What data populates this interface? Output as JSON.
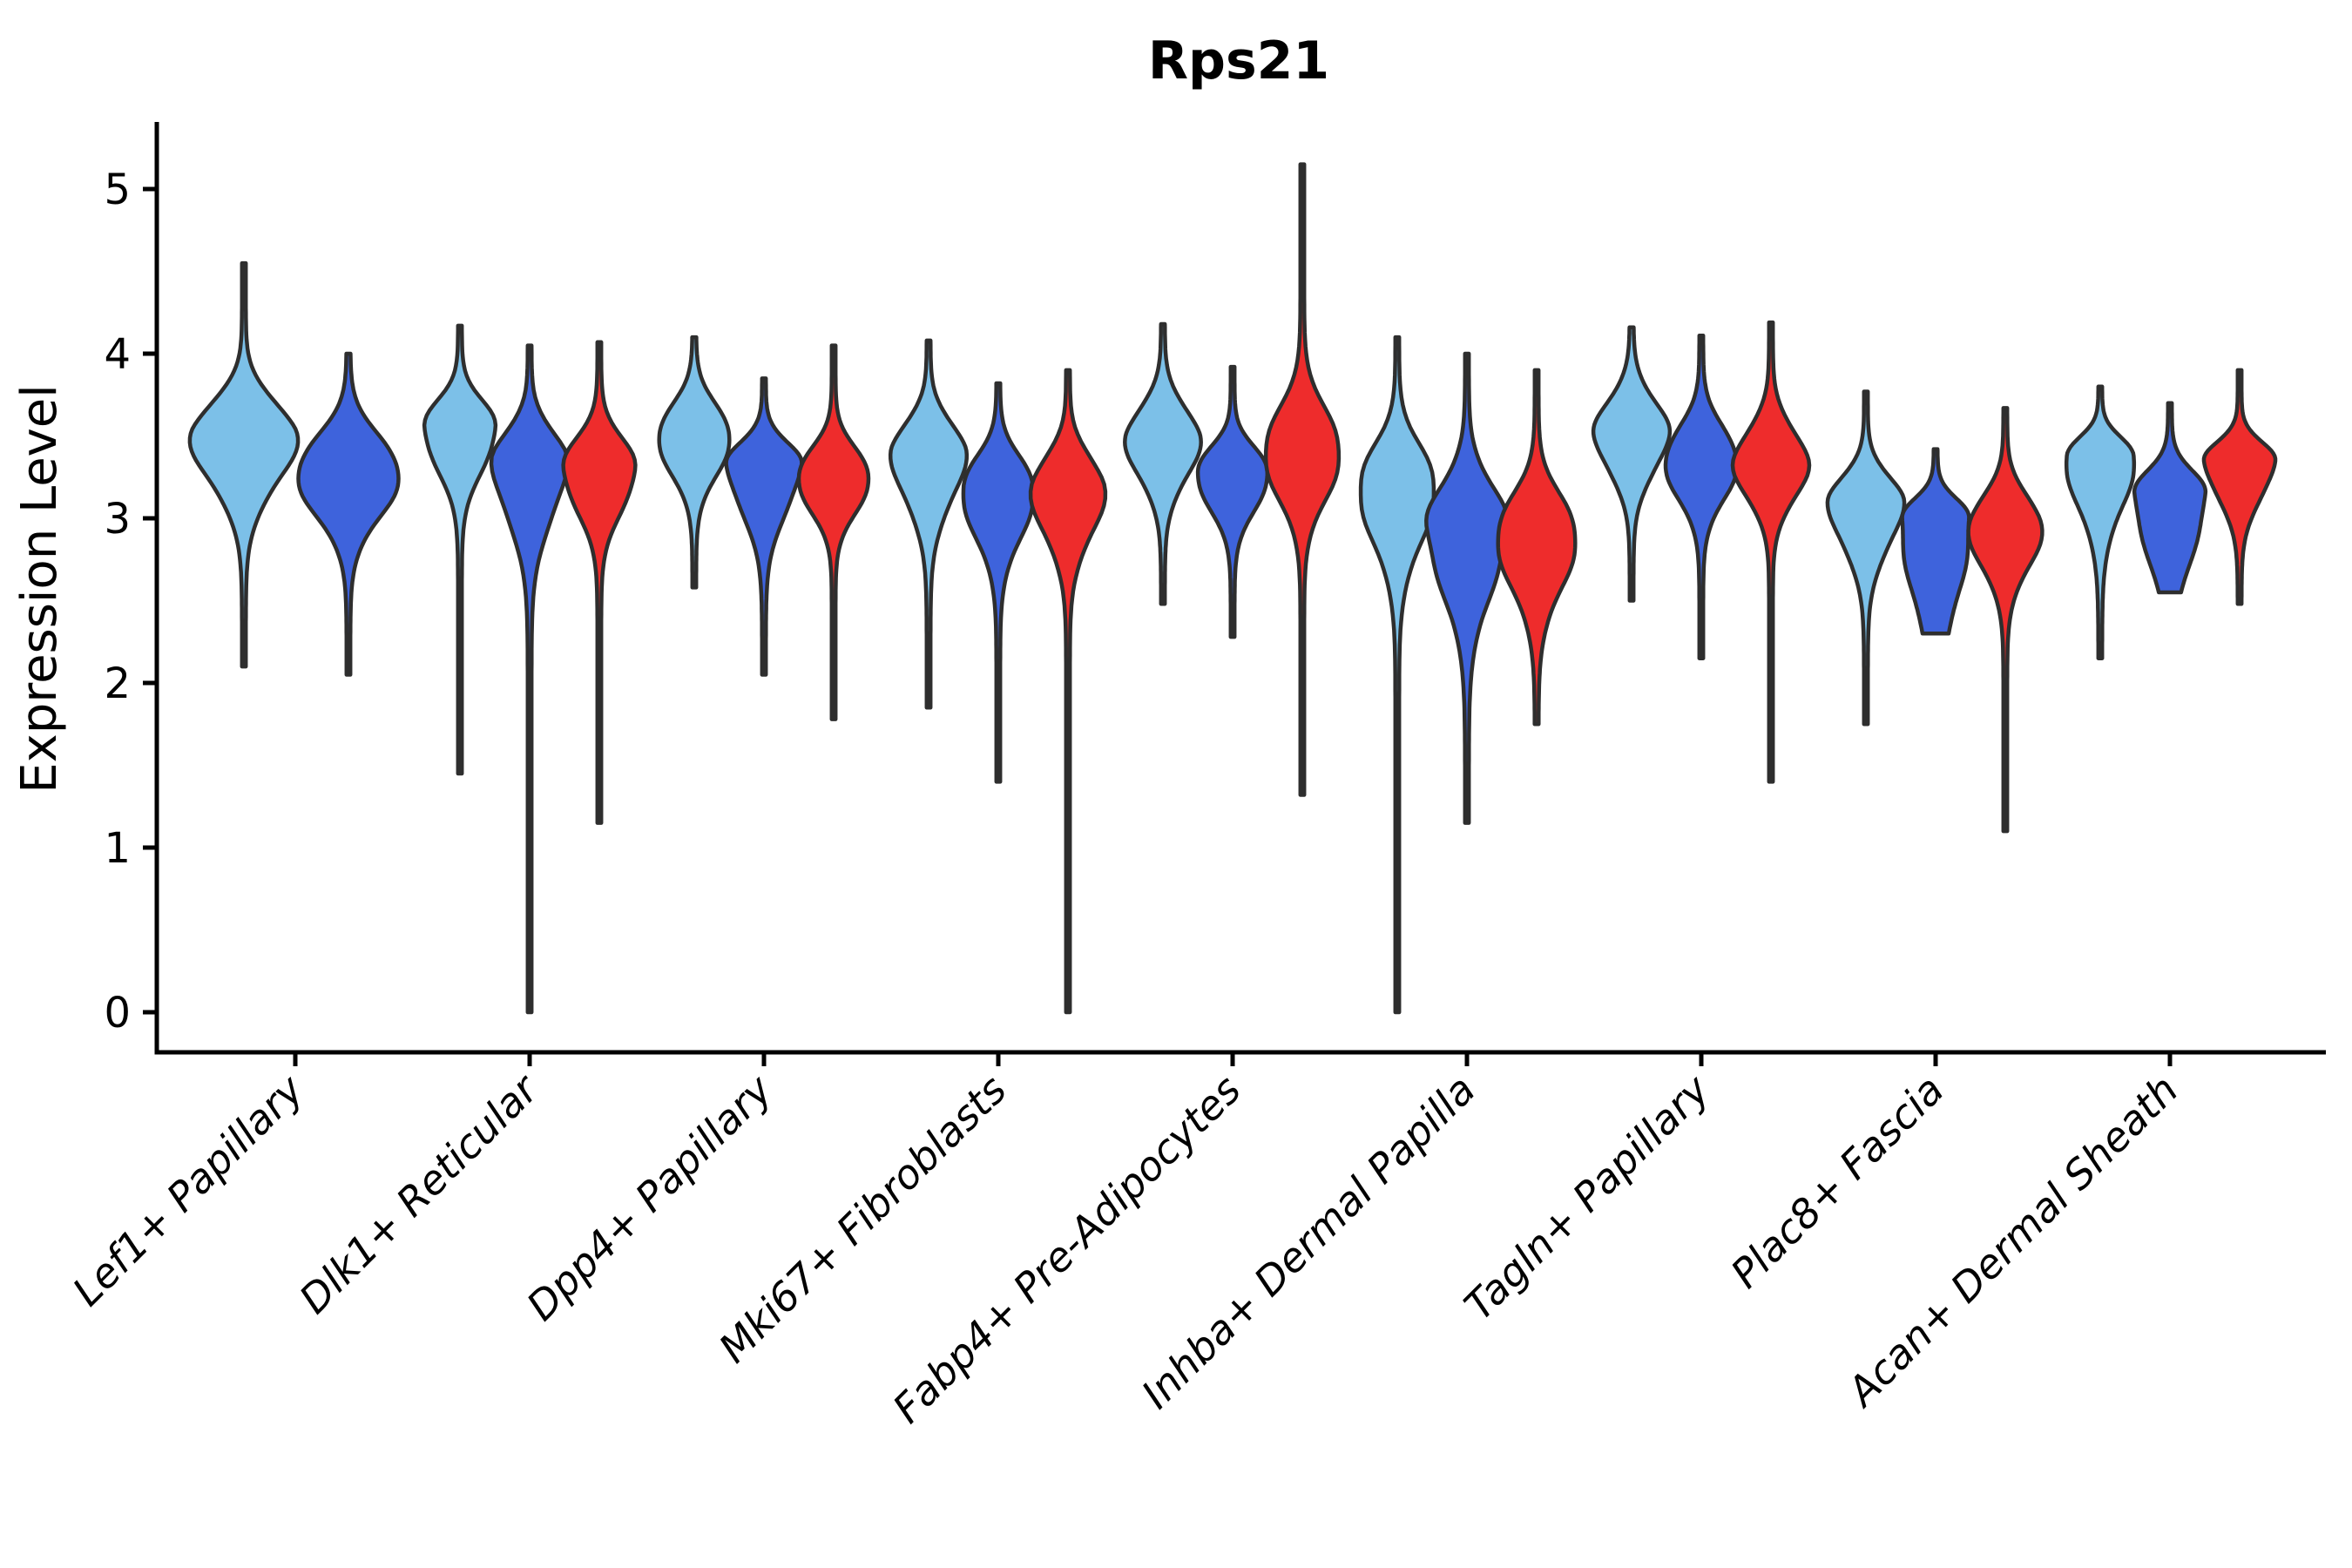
{
  "figure": {
    "title": "Rps21",
    "ylabel": "Expression Level"
  },
  "chart_data": {
    "type": "violin",
    "title": "Rps21",
    "xlabel": "",
    "ylabel": "Expression Level",
    "ylim": [
      0,
      5
    ],
    "yticks": [
      0,
      1,
      2,
      3,
      4,
      5
    ],
    "grid": false,
    "legend": "none",
    "colors": {
      "series_1": "#7CC0E8",
      "series_2": "#3E63DC",
      "series_3": "#EE2C2C",
      "edge": "#2E2E2E",
      "axis": "#000000"
    },
    "categories": [
      "Lef1+ Papillary",
      "Dlk1+ Reticular",
      "Dpp4+ Papillary",
      "Mki67+ Fibroblasts",
      "Fabp4+ Pre-Adipocytes",
      "Inhba+ Dermal Papilla",
      "Tagln+ Papillary",
      "Plac8+ Fascia",
      "Acan+ Dermal Sheath"
    ],
    "groups": [
      {
        "category": "Lef1+ Papillary",
        "violins": [
          {
            "series": 1,
            "color": "series_1",
            "offset": -59,
            "max_width": 120,
            "min": 2.1,
            "q_low": 2.85,
            "peak": 3.5,
            "q_high": 3.95,
            "max": 4.55
          },
          {
            "series": 2,
            "color": "series_2",
            "offset": 61,
            "max_width": 118,
            "min": 2.05,
            "q_low": 2.7,
            "peak": 3.28,
            "q_high": 3.75,
            "max": 4.0
          }
        ]
      },
      {
        "category": "Dlk1+ Reticular",
        "violins": [
          {
            "series": 1,
            "color": "series_1",
            "offset": -80,
            "max_width": 84,
            "min": 1.45,
            "q_low": 3.0,
            "peak": 3.55,
            "q_high": 3.9,
            "max": 4.17
          },
          {
            "series": 2,
            "color": "series_2",
            "offset": 0,
            "max_width": 84,
            "min": 0.0,
            "q_low": 2.6,
            "peak": 3.35,
            "q_high": 3.75,
            "max": 4.05
          },
          {
            "series": 3,
            "color": "series_3",
            "offset": 80,
            "max_width": 84,
            "min": 1.15,
            "q_low": 2.75,
            "peak": 3.3,
            "q_high": 3.7,
            "max": 4.07
          }
        ]
      },
      {
        "category": "Dpp4+ Papillary",
        "violins": [
          {
            "series": 1,
            "color": "series_1",
            "offset": -80,
            "max_width": 84,
            "min": 2.58,
            "q_low": 3.0,
            "peak": 3.5,
            "q_high": 3.9,
            "max": 4.1
          },
          {
            "series": 2,
            "color": "series_2",
            "offset": 0,
            "max_width": 84,
            "min": 2.05,
            "q_low": 2.7,
            "peak": 3.33,
            "q_high": 3.62,
            "max": 3.85
          },
          {
            "series": 3,
            "color": "series_3",
            "offset": 80,
            "max_width": 84,
            "min": 1.78,
            "q_low": 2.8,
            "peak": 3.25,
            "q_high": 3.62,
            "max": 4.05
          }
        ]
      },
      {
        "category": "Mki67+ Fibroblasts",
        "violins": [
          {
            "series": 1,
            "color": "series_1",
            "offset": -80,
            "max_width": 84,
            "min": 1.85,
            "q_low": 2.75,
            "peak": 3.4,
            "q_high": 3.8,
            "max": 4.08
          },
          {
            "series": 2,
            "color": "series_2",
            "offset": 0,
            "max_width": 84,
            "min": 1.4,
            "q_low": 2.55,
            "peak": 3.18,
            "q_high": 3.58,
            "max": 3.82
          },
          {
            "series": 3,
            "color": "series_3",
            "offset": 80,
            "max_width": 84,
            "min": 0.0,
            "q_low": 2.55,
            "peak": 3.18,
            "q_high": 3.6,
            "max": 3.9
          }
        ]
      },
      {
        "category": "Fabp4+ Pre-Adipocytes",
        "violins": [
          {
            "series": 1,
            "color": "series_1",
            "offset": -80,
            "max_width": 84,
            "min": 2.48,
            "q_low": 2.95,
            "peak": 3.48,
            "q_high": 3.9,
            "max": 4.18
          },
          {
            "series": 2,
            "color": "series_2",
            "offset": 0,
            "max_width": 84,
            "min": 2.28,
            "q_low": 2.8,
            "peak": 3.28,
            "q_high": 3.6,
            "max": 3.92
          },
          {
            "series": 3,
            "color": "series_3",
            "offset": 80,
            "max_width": 88,
            "min": 1.32,
            "q_low": 2.8,
            "peak": 3.4,
            "q_high": 3.95,
            "max": 5.15
          }
        ]
      },
      {
        "category": "Inhba+ Dermal Papilla",
        "violins": [
          {
            "series": 1,
            "color": "series_1",
            "offset": -80,
            "max_width": 88,
            "min": 0.0,
            "q_low": 2.45,
            "peak": 3.2,
            "q_high": 3.7,
            "max": 4.1
          },
          {
            "series": 2,
            "color": "series_2",
            "offset": 0,
            "max_width": 92,
            "min": 1.15,
            "q_low": 2.1,
            "peak": 2.95,
            "q_high": 3.5,
            "max": 4.0
          },
          {
            "series": 3,
            "color": "series_3",
            "offset": 80,
            "max_width": 92,
            "min": 1.75,
            "q_low": 2.2,
            "peak": 2.9,
            "q_high": 3.4,
            "max": 3.9
          }
        ]
      },
      {
        "category": "Tagln+ Papillary",
        "violins": [
          {
            "series": 1,
            "color": "series_1",
            "offset": -80,
            "max_width": 84,
            "min": 2.5,
            "q_low": 3.0,
            "peak": 3.52,
            "q_high": 3.95,
            "max": 4.16
          },
          {
            "series": 2,
            "color": "series_2",
            "offset": 0,
            "max_width": 84,
            "min": 2.15,
            "q_low": 2.85,
            "peak": 3.35,
            "q_high": 3.78,
            "max": 4.11
          },
          {
            "series": 3,
            "color": "series_3",
            "offset": 80,
            "max_width": 84,
            "min": 1.4,
            "q_low": 2.85,
            "peak": 3.33,
            "q_high": 3.78,
            "max": 4.19
          }
        ]
      },
      {
        "category": "Plac8+ Fascia",
        "violins": [
          {
            "series": 1,
            "color": "series_1",
            "offset": -80,
            "max_width": 84,
            "min": 1.75,
            "q_low": 2.5,
            "peak": 3.1,
            "q_high": 3.45,
            "max": 3.77
          },
          {
            "series": 2,
            "color": "series_2",
            "offset": 0,
            "max_width": 80,
            "min": 2.3,
            "q_low": 2.45,
            "peak": 3.0,
            "q_high": 3.25,
            "max": 3.42,
            "blunt_bottom": true
          },
          {
            "series": 3,
            "color": "series_3",
            "offset": 80,
            "max_width": 84,
            "min": 1.1,
            "q_low": 2.4,
            "peak": 2.95,
            "q_high": 3.35,
            "max": 3.67
          }
        ]
      },
      {
        "category": "Acan+ Dermal Sheath",
        "violins": [
          {
            "series": 1,
            "color": "series_1",
            "offset": -80,
            "max_width": 80,
            "min": 2.15,
            "q_low": 2.7,
            "peak": 3.38,
            "q_high": 3.62,
            "max": 3.8
          },
          {
            "series": 2,
            "color": "series_2",
            "offset": 0,
            "max_width": 82,
            "min": 2.55,
            "q_low": 2.72,
            "peak": 3.15,
            "q_high": 3.45,
            "max": 3.7,
            "blunt_bottom": true
          },
          {
            "series": 3,
            "color": "series_3",
            "offset": 80,
            "max_width": 80,
            "min": 2.48,
            "q_low": 2.85,
            "peak": 3.35,
            "q_high": 3.6,
            "max": 3.9
          }
        ]
      }
    ]
  }
}
